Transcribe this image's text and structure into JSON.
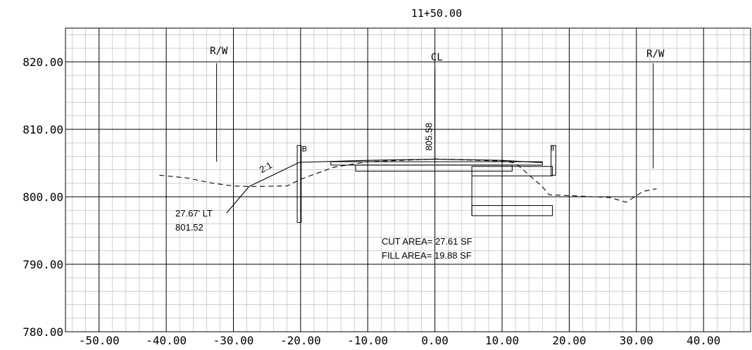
{
  "station_title": "11+50.00",
  "chart_data": {
    "type": "line",
    "title": "11+50.00",
    "xlabel": "",
    "ylabel": "",
    "xlim": [
      -55,
      47
    ],
    "ylim": [
      780,
      825
    ],
    "grid": "major 10 ft offset / 10 ft elevation with minor 2 ft grid",
    "x_ticks": [
      "-50.00",
      "-40.00",
      "-30.00",
      "-20.00",
      "-10.00",
      "0.00",
      "10.00",
      "20.00",
      "30.00",
      "40.00"
    ],
    "y_ticks": [
      "780.00",
      "790.00",
      "800.00",
      "810.00",
      "820.00"
    ],
    "series": [
      {
        "kind": "existing-ground-dashed",
        "points": [
          [
            -41,
            803.2
          ],
          [
            -37,
            802.8
          ],
          [
            -33,
            802.0
          ],
          [
            -30,
            801.6
          ],
          [
            -27.67,
            801.52
          ],
          [
            -22,
            801.6
          ],
          [
            -20,
            802.6
          ],
          [
            -15,
            804.4
          ],
          [
            -10,
            805.2
          ],
          [
            0,
            805.6
          ],
          [
            10,
            805.3
          ],
          [
            12,
            805.0
          ],
          [
            16,
            801.5
          ],
          [
            17,
            800.3
          ],
          [
            26,
            799.9
          ],
          [
            28.5,
            799.2
          ],
          [
            31,
            800.8
          ],
          [
            33,
            801.2
          ]
        ]
      },
      {
        "kind": "proposed-grade-solid",
        "points": [
          [
            -27.67,
            801.52
          ],
          [
            -20.2,
            805.1
          ],
          [
            -10,
            805.4
          ],
          [
            0,
            805.58
          ],
          [
            10,
            805.4
          ],
          [
            16,
            805.05
          ]
        ]
      },
      {
        "kind": "fill-slope-toe-leader",
        "points": [
          [
            -27.67,
            801.52
          ],
          [
            -31,
            797.6
          ]
        ]
      }
    ],
    "labels": {
      "rw_left": "R/W",
      "rw_right": "R/W",
      "centerline": "CL",
      "centerline_elevation": "805.58",
      "slope_ratio": "2:1",
      "toe_offset": "27.67' LT",
      "toe_elevation": "801.52",
      "cut_area": "CUT AREA= 27.61 SF",
      "fill_area": "FILL AREA= 19.88 SF",
      "curb_mark_left": "B",
      "curb_mark_right": "8"
    }
  },
  "colors": {
    "line": "#000000",
    "minor_grid": "#b4b4b4",
    "major_grid": "#000000"
  }
}
